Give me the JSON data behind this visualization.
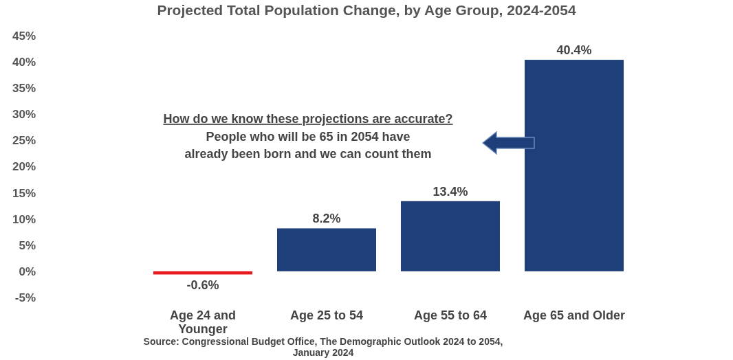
{
  "chart_data": {
    "type": "bar",
    "title": "Projected Total Population Change, by Age Group, 2024-2054",
    "categories": [
      "Age 24 and Younger",
      "Age 25 to 54",
      "Age 55 to 64",
      "Age 65 and Older"
    ],
    "values": [
      -0.6,
      8.2,
      13.4,
      40.4
    ],
    "colors": [
      "#e8191f",
      "#1f3f7a",
      "#1f3f7a",
      "#1f3f7a"
    ],
    "value_labels": [
      "-0.6%",
      "8.2%",
      "13.4%",
      "40.4%"
    ],
    "ylim": [
      -5,
      45
    ],
    "yticks": [
      {
        "value": -5,
        "label": "-5%"
      },
      {
        "value": 0,
        "label": "0%"
      },
      {
        "value": 5,
        "label": "5%"
      },
      {
        "value": 10,
        "label": "10%"
      },
      {
        "value": 15,
        "label": "15%"
      },
      {
        "value": 20,
        "label": "20%"
      },
      {
        "value": 25,
        "label": "25%"
      },
      {
        "value": 30,
        "label": "30%"
      },
      {
        "value": 35,
        "label": "35%"
      },
      {
        "value": 40,
        "label": "40%"
      },
      {
        "value": 45,
        "label": "45%"
      }
    ],
    "grid": false,
    "annotations": [
      "How do we know these projections are accurate?",
      "People who will be 65 in 2054 have",
      "already been born and we can count them",
      "Source: Congressional Budget Office, The Demographic Outlook 2024 to 2054, January 2024"
    ]
  }
}
